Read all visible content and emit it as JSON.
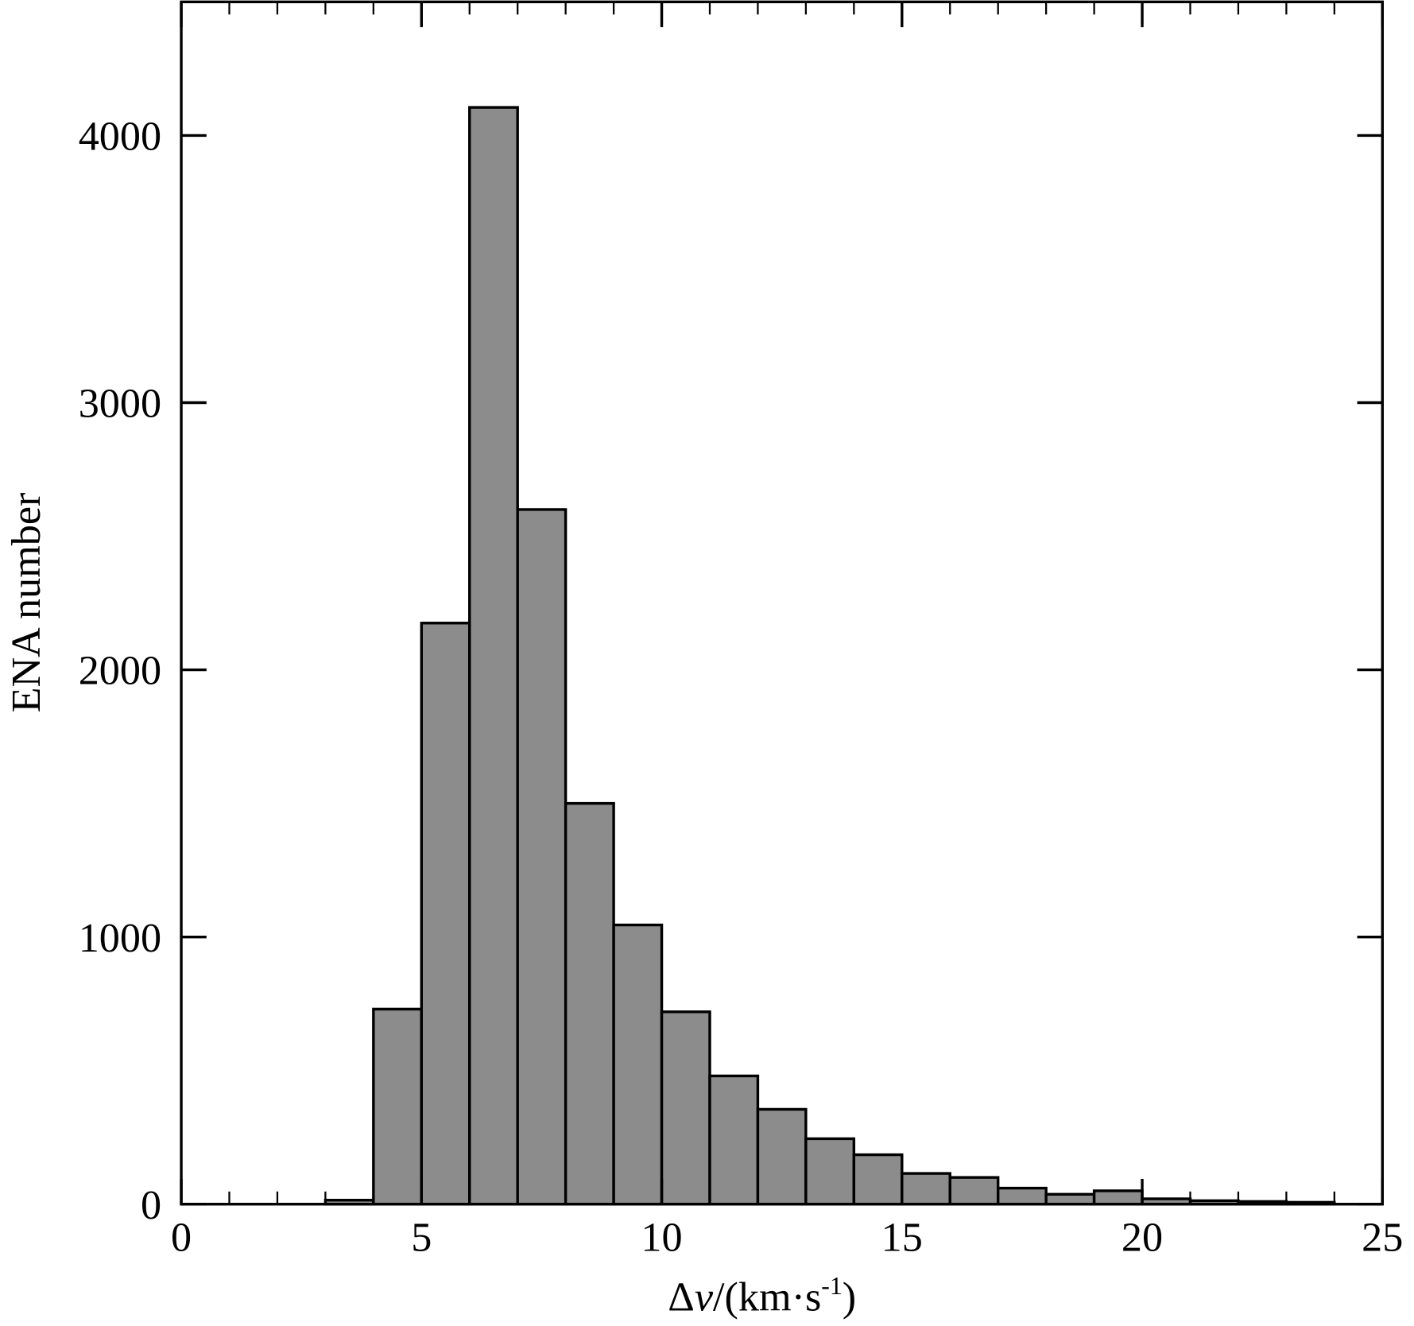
{
  "chart_data": {
    "type": "histogram",
    "x_label": {
      "delta": "Δ",
      "var": "v",
      "unit": "/(km·s",
      "exp": "-1",
      "close": ")"
    },
    "y_label": "ENA number",
    "bins": [
      0,
      1,
      2,
      3,
      4,
      5,
      6,
      7,
      8,
      9,
      10,
      11,
      12,
      13,
      14,
      15,
      16,
      17,
      18,
      19,
      20,
      21,
      22,
      23,
      24
    ],
    "values": [
      0,
      0,
      0,
      15,
      730,
      2175,
      4105,
      2600,
      1500,
      1045,
      720,
      480,
      355,
      245,
      185,
      115,
      100,
      60,
      37,
      50,
      20,
      13,
      10,
      7
    ],
    "color": "#8c8c8c",
    "xlim": [
      0,
      25
    ],
    "xticks": [
      0,
      5,
      10,
      15,
      20,
      25
    ],
    "ylim": [
      0,
      4500
    ],
    "yticks": [
      0,
      1000,
      2000,
      3000,
      4000
    ]
  }
}
